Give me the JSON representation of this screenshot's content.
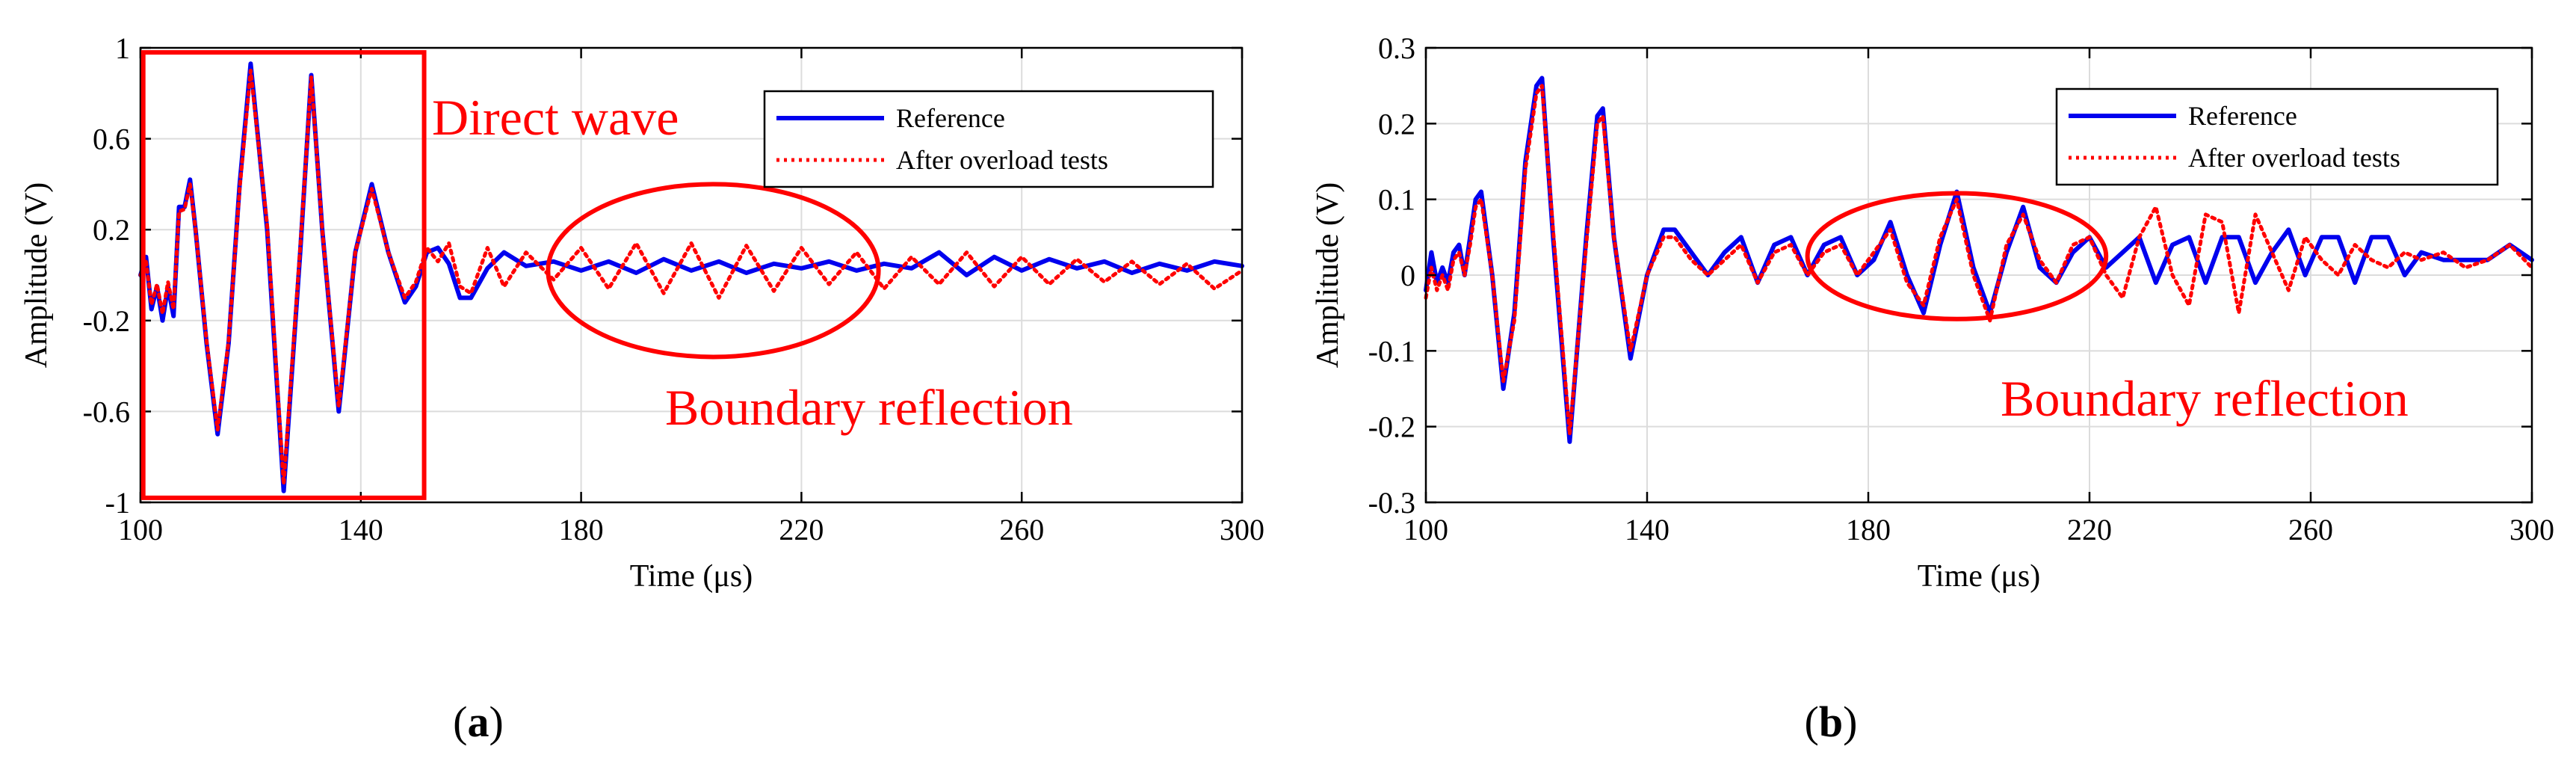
{
  "chart_data": [
    {
      "type": "line",
      "panel_label_open": "(",
      "panel_label_letter": "a",
      "panel_label_close": ")",
      "xlabel": "Time (μs)",
      "ylabel": "Amplitude (V)",
      "xlim": [
        100,
        300
      ],
      "ylim": [
        -1,
        1
      ],
      "xticks": [
        "100",
        "140",
        "180",
        "220",
        "260",
        "300"
      ],
      "yticks": [
        "1",
        "0.6",
        "0.2",
        "-0.2",
        "-0.6",
        "-1"
      ],
      "grid": true,
      "legend": {
        "position": "top-right",
        "entries": [
          "Reference",
          "After overload tests"
        ]
      },
      "annotations": [
        "Direct wave",
        "Boundary reflection"
      ],
      "highlight_box_x": [
        100.5,
        151.5
      ],
      "highlight_box_y": [
        -0.98,
        0.98
      ],
      "highlight_ellipse": {
        "cx": 204,
        "cy": 0.02,
        "rx": 30,
        "ry": 0.38
      },
      "series": [
        {
          "name": "Reference",
          "color": "#0000ee",
          "style": "solid",
          "x": [
            100,
            101,
            102,
            103,
            104,
            105,
            106,
            107,
            108,
            109,
            110,
            112,
            114,
            116,
            118,
            120,
            123,
            126,
            129,
            131,
            133,
            136,
            139,
            142,
            145,
            148,
            150,
            152,
            154,
            156,
            158,
            160,
            163,
            166,
            170,
            175,
            180,
            185,
            190,
            195,
            200,
            205,
            210,
            215,
            220,
            225,
            230,
            235,
            240,
            245,
            250,
            255,
            260,
            265,
            270,
            275,
            280,
            285,
            290,
            295,
            300
          ],
          "values": [
            0,
            0.08,
            -0.15,
            -0.05,
            -0.2,
            -0.05,
            -0.18,
            0.3,
            0.3,
            0.42,
            0.2,
            -0.3,
            -0.7,
            -0.3,
            0.4,
            0.93,
            0.2,
            -0.95,
            0.1,
            0.88,
            0.2,
            -0.6,
            0.1,
            0.4,
            0.1,
            -0.12,
            -0.05,
            0.1,
            0.12,
            0.05,
            -0.1,
            -0.1,
            0.03,
            0.1,
            0.04,
            0.06,
            0.02,
            0.06,
            0.01,
            0.07,
            0.02,
            0.06,
            0.01,
            0.05,
            0.03,
            0.06,
            0.02,
            0.05,
            0.03,
            0.1,
            0.0,
            0.08,
            0.02,
            0.07,
            0.03,
            0.06,
            0.01,
            0.05,
            0.02,
            0.06,
            0.04
          ]
        },
        {
          "name": "After overload tests",
          "color": "#ff0000",
          "style": "dotted",
          "x": [
            100,
            101,
            102,
            103,
            104,
            105,
            106,
            107,
            108,
            109,
            110,
            112,
            114,
            116,
            118,
            120,
            123,
            126,
            129,
            131,
            133,
            136,
            139,
            142,
            145,
            148,
            150,
            152,
            154,
            156,
            158,
            160,
            163,
            166,
            170,
            175,
            180,
            185,
            190,
            195,
            200,
            205,
            210,
            215,
            220,
            225,
            230,
            235,
            240,
            245,
            250,
            255,
            260,
            265,
            270,
            275,
            280,
            285,
            290,
            295,
            300
          ],
          "values": [
            0,
            0.06,
            -0.13,
            -0.04,
            -0.17,
            -0.03,
            -0.15,
            0.28,
            0.29,
            0.4,
            0.2,
            -0.29,
            -0.68,
            -0.29,
            0.38,
            0.9,
            0.22,
            -0.92,
            0.12,
            0.87,
            0.2,
            -0.58,
            0.1,
            0.38,
            0.1,
            -0.1,
            -0.03,
            0.12,
            0.06,
            0.14,
            -0.05,
            -0.08,
            0.12,
            -0.05,
            0.1,
            -0.02,
            0.12,
            -0.06,
            0.14,
            -0.08,
            0.14,
            -0.1,
            0.13,
            -0.07,
            0.12,
            -0.04,
            0.1,
            -0.06,
            0.08,
            -0.04,
            0.1,
            -0.05,
            0.08,
            -0.04,
            0.07,
            -0.03,
            0.06,
            -0.04,
            0.05,
            -0.06,
            0.02
          ]
        }
      ]
    },
    {
      "type": "line",
      "panel_label_open": "(",
      "panel_label_letter": "b",
      "panel_label_close": ")",
      "xlabel": "Time (μs)",
      "ylabel": "Amplitude (V)",
      "xlim": [
        100,
        300
      ],
      "ylim": [
        -0.3,
        0.3
      ],
      "xticks": [
        "100",
        "140",
        "180",
        "220",
        "260",
        "300"
      ],
      "yticks": [
        "0.3",
        "0.2",
        "0.1",
        "0",
        "-0.1",
        "-0.2",
        "-0.3"
      ],
      "grid": true,
      "legend": {
        "position": "top-right",
        "entries": [
          "Reference",
          "After overload tests"
        ]
      },
      "annotations": [
        "Boundary reflection"
      ],
      "highlight_ellipse": {
        "cx": 196,
        "cy": 0.025,
        "rx": 27,
        "ry": 0.083
      },
      "series": [
        {
          "name": "Reference",
          "color": "#0000ee",
          "style": "solid",
          "x": [
            100,
            101,
            102,
            103,
            104,
            105,
            106,
            107,
            108,
            109,
            110,
            112,
            114,
            116,
            118,
            120,
            121,
            123,
            126,
            129,
            131,
            132,
            134,
            137,
            140,
            143,
            145,
            148,
            151,
            154,
            157,
            160,
            163,
            166,
            169,
            172,
            175,
            178,
            181,
            184,
            187,
            190,
            193,
            196,
            199,
            202,
            205,
            208,
            211,
            214,
            217,
            220,
            223,
            226,
            229,
            232,
            235,
            238,
            241,
            244,
            247,
            250,
            253,
            256,
            259,
            262,
            265,
            268,
            271,
            274,
            277,
            280,
            284,
            288,
            292,
            296,
            300
          ],
          "values": [
            -0.02,
            0.03,
            -0.01,
            0.01,
            -0.01,
            0.03,
            0.04,
            0.0,
            0.05,
            0.1,
            0.11,
            0.0,
            -0.15,
            -0.05,
            0.15,
            0.25,
            0.26,
            0.05,
            -0.22,
            0.05,
            0.21,
            0.22,
            0.05,
            -0.11,
            0.0,
            0.06,
            0.06,
            0.03,
            0.0,
            0.03,
            0.05,
            -0.01,
            0.04,
            0.05,
            0.0,
            0.04,
            0.05,
            0.0,
            0.02,
            0.07,
            0.0,
            -0.05,
            0.04,
            0.11,
            0.01,
            -0.05,
            0.03,
            0.09,
            0.01,
            -0.01,
            0.03,
            0.05,
            0.01,
            0.03,
            0.05,
            -0.01,
            0.04,
            0.05,
            -0.01,
            0.05,
            0.05,
            -0.01,
            0.03,
            0.06,
            0.0,
            0.05,
            0.05,
            -0.01,
            0.05,
            0.05,
            0.0,
            0.03,
            0.02,
            0.02,
            0.02,
            0.04,
            0.02
          ]
        },
        {
          "name": "After overload tests",
          "color": "#ff0000",
          "style": "dotted",
          "x": [
            100,
            101,
            102,
            103,
            104,
            105,
            106,
            107,
            108,
            109,
            110,
            112,
            114,
            116,
            118,
            120,
            121,
            123,
            126,
            129,
            131,
            132,
            134,
            137,
            140,
            143,
            145,
            148,
            151,
            154,
            157,
            160,
            163,
            166,
            169,
            172,
            175,
            178,
            181,
            184,
            187,
            190,
            193,
            196,
            199,
            202,
            205,
            208,
            211,
            214,
            217,
            220,
            223,
            226,
            229,
            232,
            235,
            238,
            241,
            244,
            247,
            250,
            253,
            256,
            259,
            262,
            265,
            268,
            271,
            274,
            277,
            280,
            284,
            288,
            292,
            296,
            300
          ],
          "values": [
            -0.03,
            0.01,
            -0.02,
            0.0,
            -0.02,
            0.02,
            0.03,
            0.0,
            0.04,
            0.09,
            0.1,
            0.0,
            -0.14,
            -0.06,
            0.14,
            0.24,
            0.25,
            0.06,
            -0.21,
            0.04,
            0.2,
            0.21,
            0.05,
            -0.1,
            0.0,
            0.05,
            0.05,
            0.02,
            0.0,
            0.02,
            0.04,
            -0.01,
            0.03,
            0.04,
            0.0,
            0.03,
            0.04,
            0.0,
            0.03,
            0.06,
            -0.01,
            -0.04,
            0.05,
            0.1,
            0.0,
            -0.06,
            0.04,
            0.08,
            0.02,
            -0.01,
            0.04,
            0.05,
            0.0,
            -0.03,
            0.05,
            0.09,
            0.0,
            -0.04,
            0.08,
            0.07,
            -0.05,
            0.08,
            0.03,
            -0.02,
            0.05,
            0.02,
            0.0,
            0.04,
            0.02,
            0.01,
            0.03,
            0.02,
            0.03,
            0.01,
            0.02,
            0.04,
            0.01
          ]
        }
      ]
    }
  ]
}
